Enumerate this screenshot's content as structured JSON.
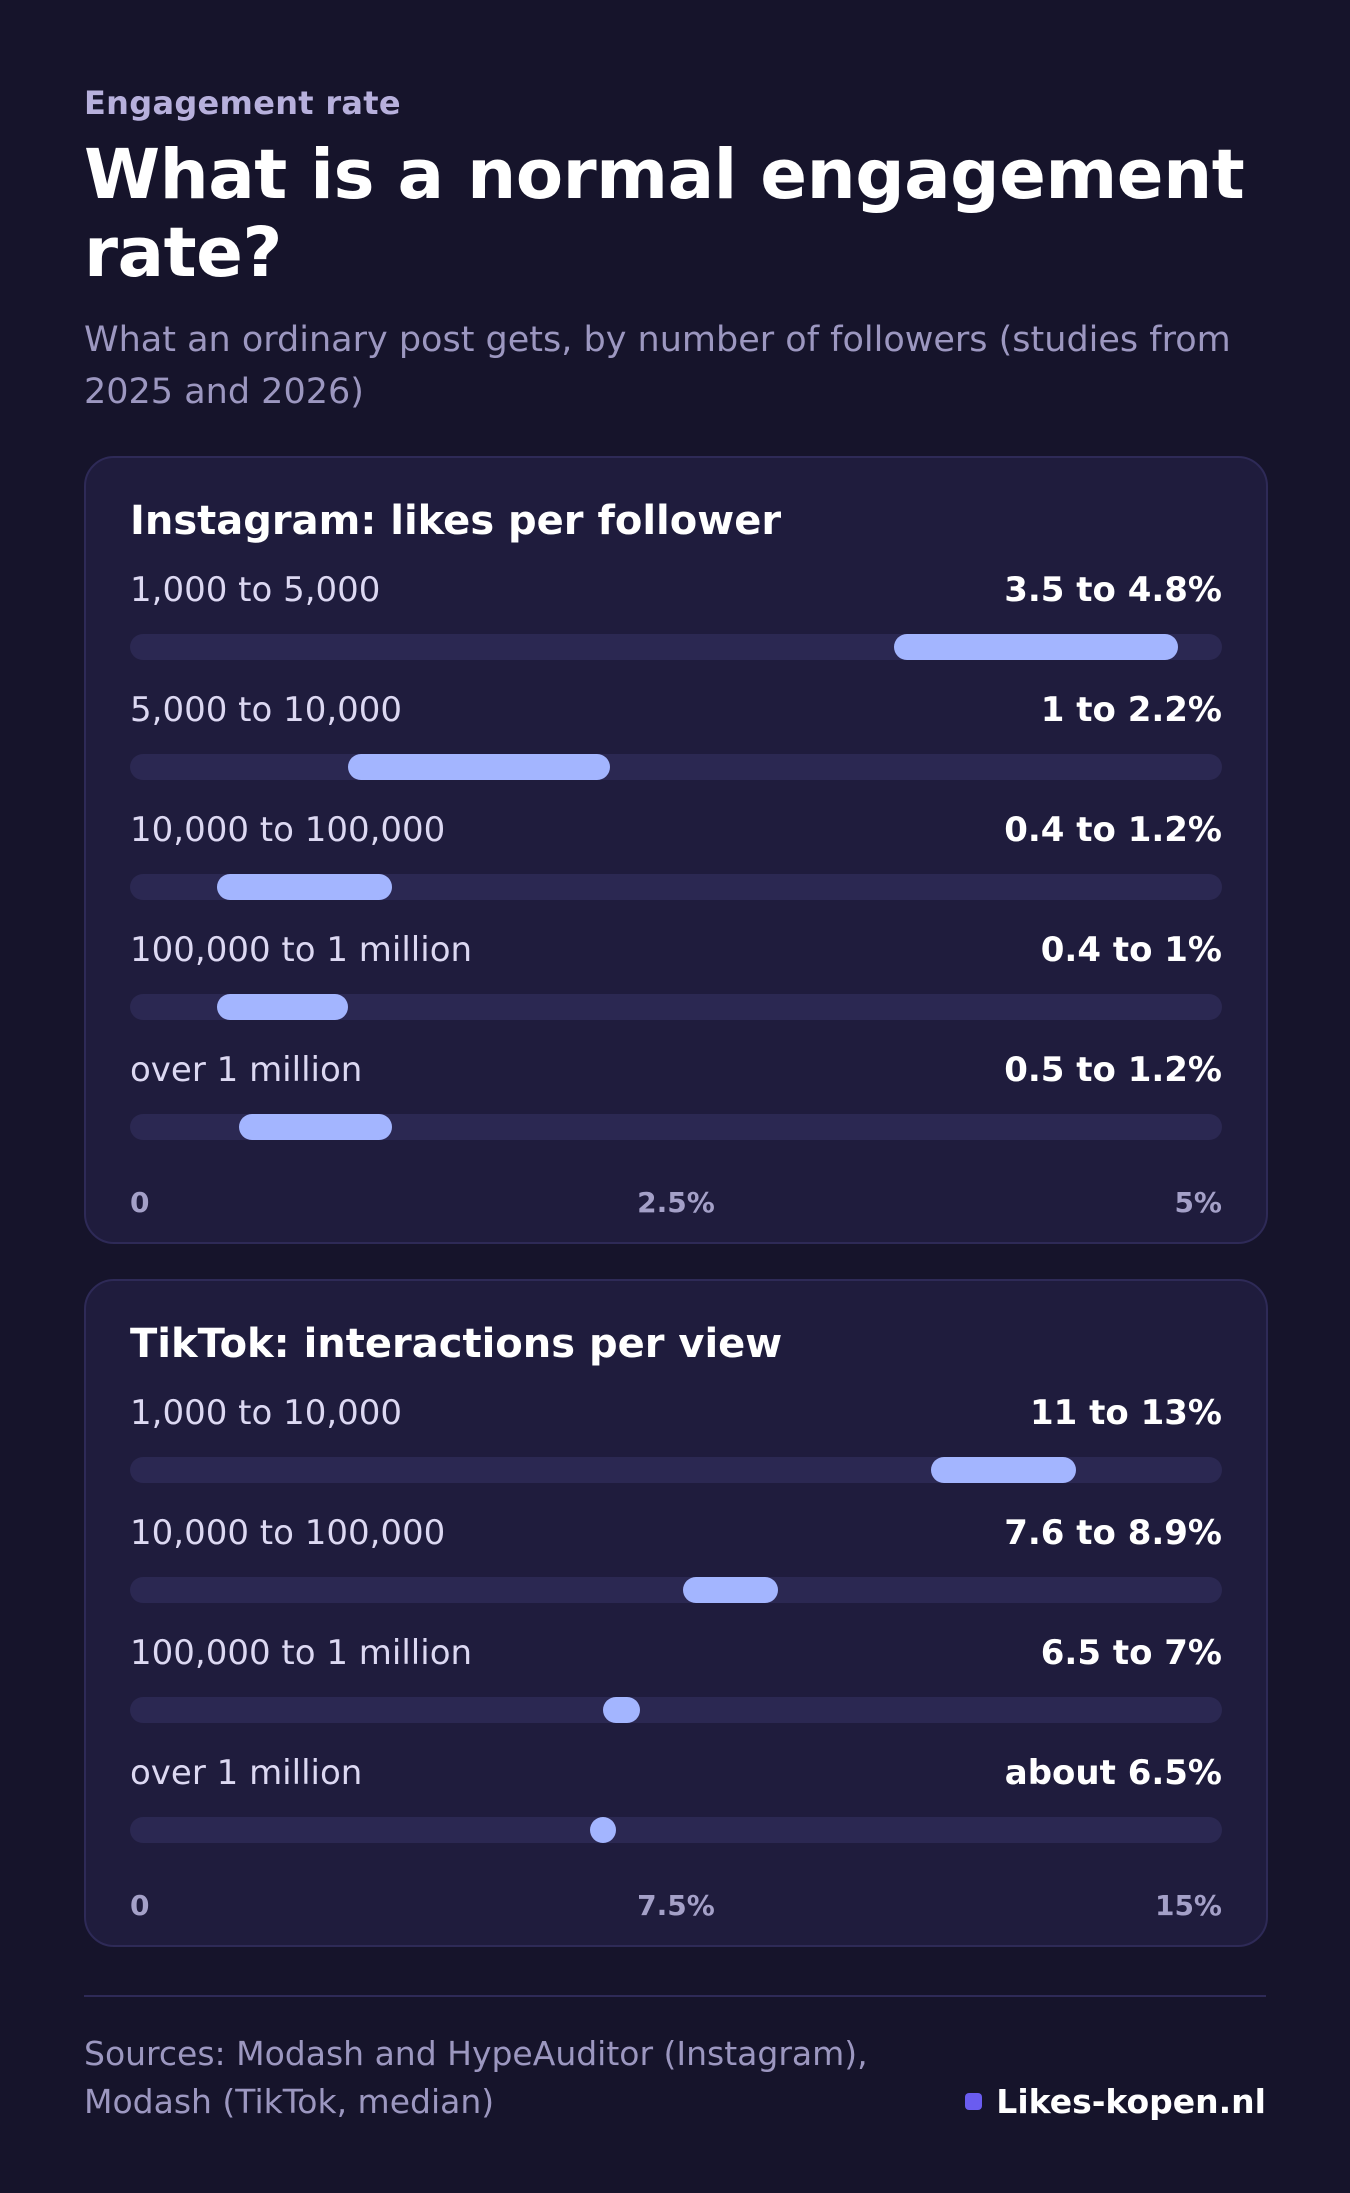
{
  "header": {
    "eyebrow": "Engagement rate",
    "title": "What is a normal engagement rate?",
    "subtitle": "What an ordinary post gets, by number of followers (studies from 2025 and 2026)"
  },
  "chart_data": [
    {
      "type": "bar",
      "title": "Instagram: likes per follower",
      "xlim": [
        0,
        5
      ],
      "unit": "%",
      "ticks": [
        "0",
        "2.5%",
        "5%"
      ],
      "rows": [
        {
          "label": "1,000 to 5,000",
          "value_text": "3.5 to 4.8%",
          "low": 3.5,
          "high": 4.8
        },
        {
          "label": "5,000 to 10,000",
          "value_text": "1 to 2.2%",
          "low": 1,
          "high": 2.2
        },
        {
          "label": "10,000 to 100,000",
          "value_text": "0.4 to 1.2%",
          "low": 0.4,
          "high": 1.2
        },
        {
          "label": "100,000 to 1 million",
          "value_text": "0.4 to 1%",
          "low": 0.4,
          "high": 1
        },
        {
          "label": "over 1 million",
          "value_text": "0.5 to 1.2%",
          "low": 0.5,
          "high": 1.2
        }
      ]
    },
    {
      "type": "bar",
      "title": "TikTok: interactions per view",
      "xlim": [
        0,
        15
      ],
      "unit": "%",
      "ticks": [
        "0",
        "7.5%",
        "15%"
      ],
      "rows": [
        {
          "label": "1,000 to 10,000",
          "value_text": "11 to 13%",
          "low": 11,
          "high": 13
        },
        {
          "label": "10,000 to 100,000",
          "value_text": "7.6 to 8.9%",
          "low": 7.6,
          "high": 8.9
        },
        {
          "label": "100,000 to 1 million",
          "value_text": "6.5 to 7%",
          "low": 6.5,
          "high": 7
        },
        {
          "label": "over 1 million",
          "value_text": "about 6.5%",
          "low": 6.5,
          "high": 6.5
        }
      ]
    }
  ],
  "footer": {
    "sources_line1": "Sources: Modash and HypeAuditor (Instagram),",
    "sources_line2": "Modash (TikTok, median)",
    "brand": "Likes-kopen.nl",
    "brand_color": "#6a5cf0",
    "bar_color": "#a3b5ff"
  }
}
